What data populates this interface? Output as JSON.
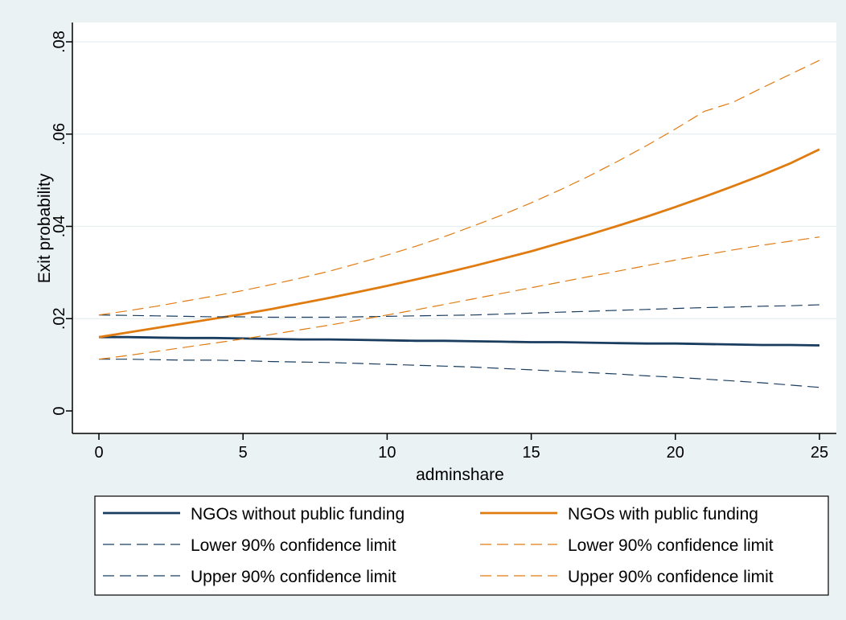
{
  "chart_data": {
    "type": "line",
    "title": "",
    "xlabel": "adminshare",
    "ylabel": "Exit probability",
    "xlim": [
      0,
      25
    ],
    "ylim": [
      0,
      0.08
    ],
    "x_ticks": [
      0,
      5,
      10,
      15,
      20,
      25
    ],
    "x_tick_labels": [
      "0",
      "5",
      "10",
      "15",
      "20",
      "25"
    ],
    "y_ticks": [
      0,
      0.02,
      0.04,
      0.06,
      0.08
    ],
    "y_tick_labels": [
      "0",
      ".02",
      ".04",
      ".06",
      ".08"
    ],
    "grid": "horizontal",
    "legend_position": "bottom",
    "x": [
      0,
      1,
      2,
      3,
      4,
      5,
      6,
      7,
      8,
      9,
      10,
      11,
      12,
      13,
      14,
      15,
      16,
      17,
      18,
      19,
      20,
      21,
      22,
      23,
      24,
      25
    ],
    "series": [
      {
        "name": "NGOs without public funding",
        "color": "#1a3d5f",
        "style": "solid",
        "values": [
          0.016,
          0.016,
          0.0159,
          0.0158,
          0.0158,
          0.0157,
          0.0156,
          0.0155,
          0.0155,
          0.0154,
          0.0153,
          0.0152,
          0.0152,
          0.0151,
          0.015,
          0.0149,
          0.0149,
          0.0148,
          0.0147,
          0.0146,
          0.0146,
          0.0145,
          0.0144,
          0.0143,
          0.0143,
          0.0142
        ]
      },
      {
        "name": "NGOs with public funding",
        "color": "#e07b10",
        "style": "solid",
        "values": [
          0.016,
          0.017,
          0.018,
          0.019,
          0.02,
          0.021,
          0.0221,
          0.0233,
          0.0245,
          0.0258,
          0.0271,
          0.0285,
          0.0299,
          0.0314,
          0.033,
          0.0346,
          0.0364,
          0.0382,
          0.0401,
          0.0421,
          0.0442,
          0.0464,
          0.0487,
          0.0511,
          0.0537,
          0.0567
        ]
      },
      {
        "name": "Lower 90% confidence limit",
        "color": "#1a3d5f",
        "style": "dashed",
        "values": [
          0.0112,
          0.0112,
          0.0111,
          0.011,
          0.011,
          0.0109,
          0.0107,
          0.0106,
          0.0105,
          0.0103,
          0.0101,
          0.0099,
          0.0097,
          0.0095,
          0.0092,
          0.0089,
          0.0086,
          0.0083,
          0.008,
          0.0076,
          0.0073,
          0.0069,
          0.0065,
          0.0061,
          0.0056,
          0.0051
        ]
      },
      {
        "name": "Upper 90% confidence limit",
        "color": "#1a3d5f",
        "style": "dashed",
        "values": [
          0.0208,
          0.0207,
          0.0206,
          0.0205,
          0.0204,
          0.0204,
          0.0203,
          0.0203,
          0.0203,
          0.0204,
          0.0205,
          0.0206,
          0.0207,
          0.0208,
          0.021,
          0.0212,
          0.0214,
          0.0216,
          0.0218,
          0.022,
          0.0222,
          0.0224,
          0.0225,
          0.0227,
          0.0228,
          0.023
        ]
      },
      {
        "name": "Lower 90% confidence limit",
        "color": "#e07b10",
        "style": "dashed",
        "values": [
          0.0112,
          0.012,
          0.0129,
          0.0138,
          0.0147,
          0.0156,
          0.0166,
          0.0176,
          0.0186,
          0.0197,
          0.0208,
          0.0219,
          0.0231,
          0.0243,
          0.0255,
          0.0267,
          0.0279,
          0.0291,
          0.0303,
          0.0315,
          0.0327,
          0.0338,
          0.0349,
          0.0359,
          0.0368,
          0.0377
        ]
      },
      {
        "name": "Upper 90% confidence limit",
        "color": "#e07b10",
        "style": "dashed",
        "values": [
          0.0208,
          0.0217,
          0.0227,
          0.0238,
          0.0249,
          0.0261,
          0.0274,
          0.0288,
          0.0303,
          0.032,
          0.0338,
          0.0357,
          0.0378,
          0.0401,
          0.0425,
          0.0451,
          0.0479,
          0.0509,
          0.0541,
          0.0575,
          0.0611,
          0.0649,
          0.0669,
          0.07,
          0.073,
          0.076
        ]
      }
    ],
    "legend": [
      [
        "NGOs without public funding",
        "NGOs with public funding"
      ],
      [
        "Lower 90% confidence limit",
        "Lower 90% confidence limit"
      ],
      [
        "Upper 90% confidence limit",
        "Upper 90% confidence limit"
      ]
    ]
  }
}
